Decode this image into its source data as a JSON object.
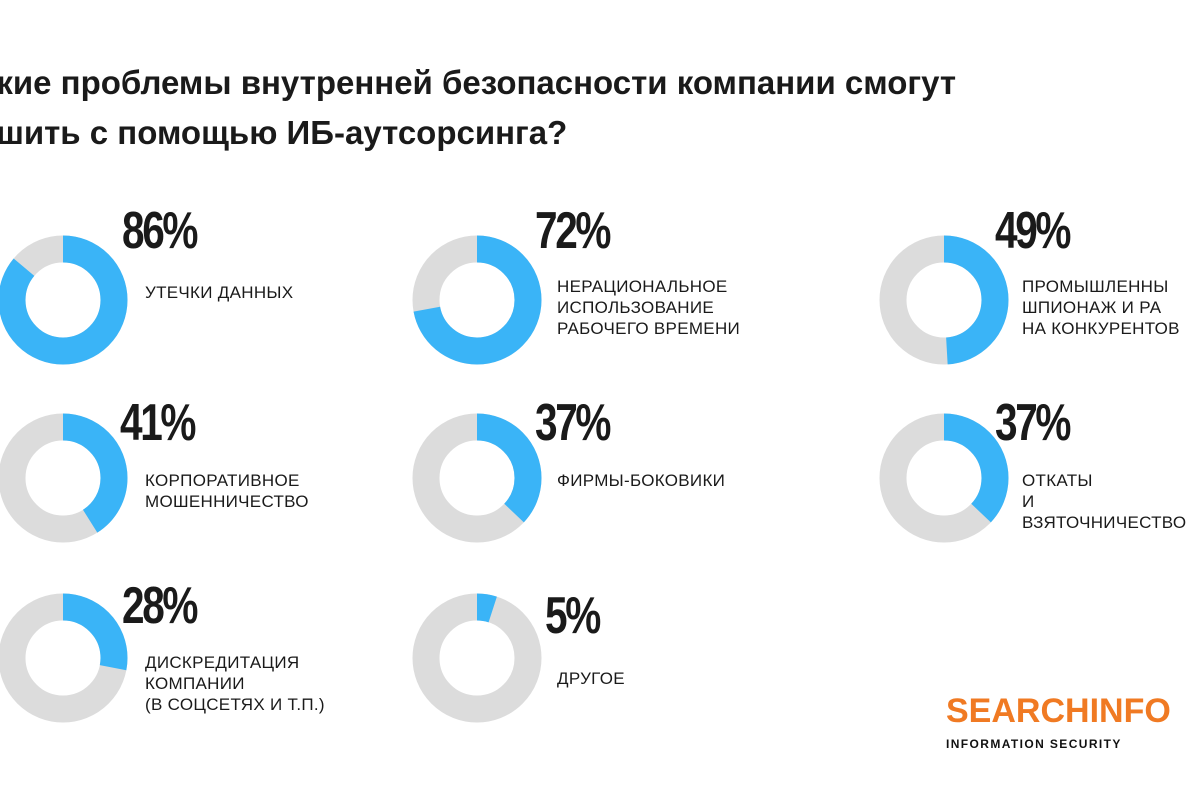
{
  "title": [
    "акие проблемы внутренней безопасности компании смогут",
    "ешить с помощью ИБ-аутсорсинга?"
  ],
  "colors": {
    "accent": "#3ab4f7",
    "track": "#dcdcdc",
    "brand": "#f07a23"
  },
  "chart_data": {
    "type": "donut",
    "values": [
      86,
      72,
      49,
      41,
      37,
      37,
      28,
      5
    ],
    "items": [
      {
        "value": "86%",
        "label": [
          "утечки данных"
        ]
      },
      {
        "value": "72%",
        "label": [
          "нерациональное",
          "использование",
          "рабочего времени"
        ]
      },
      {
        "value": "49%",
        "label": [
          "промышленны",
          "шпионаж и ра",
          "на конкурентов"
        ]
      },
      {
        "value": "41%",
        "label": [
          "корпоративное",
          "мошенничество"
        ]
      },
      {
        "value": "37%",
        "label": [
          "фирмы-боковики"
        ]
      },
      {
        "value": "37%",
        "label": [
          "откаты",
          "и",
          "взяточничество"
        ]
      },
      {
        "value": "28%",
        "label": [
          "дискредитация",
          "компании",
          "(в соцсетях и т.п.)"
        ]
      },
      {
        "value": "5%",
        "label": [
          "другое"
        ]
      }
    ]
  },
  "logo": {
    "name": "SEARCHINFO",
    "tagline": "INFORMATION SECURITY"
  }
}
